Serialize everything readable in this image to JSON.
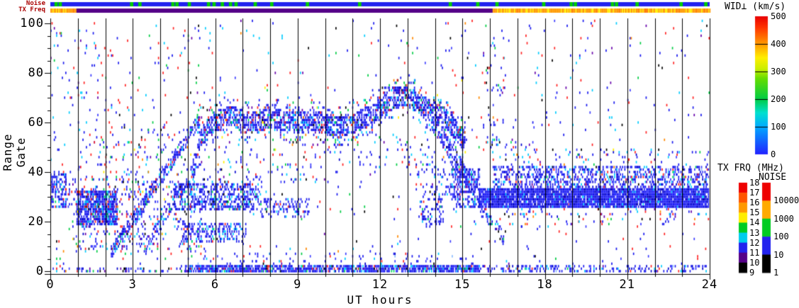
{
  "labels": {
    "noise_strip": "Noise",
    "txfreq_strip": "TX Freq"
  },
  "chart_data": {
    "type": "rti-scatter",
    "xlabel": "UT hours",
    "ylabel": "Range Gate",
    "x_range": [
      0,
      24
    ],
    "y_range": [
      0,
      100
    ],
    "x_ticks": [
      0,
      3,
      6,
      9,
      12,
      15,
      18,
      21,
      24
    ],
    "x_minor_step": 1,
    "y_ticks": [
      0,
      20,
      40,
      60,
      80,
      100
    ],
    "y_minor_step": 5,
    "vertical_scan_lines_every_hour": true,
    "palettes": {
      "low": [
        [
          "#1a1aee",
          0.58
        ],
        [
          "#3c3cff",
          0.13
        ],
        [
          "#0000cc",
          0.1
        ],
        [
          "#00ccff",
          0.09
        ],
        [
          "#00dd55",
          0.02
        ],
        [
          "#ff2222",
          0.03
        ],
        [
          "#6600aa",
          0.02
        ],
        [
          "#000000",
          0.015
        ],
        [
          "#88bbff",
          0.015
        ]
      ],
      "dense": [
        [
          "#1a1aee",
          0.55
        ],
        [
          "#2222ff",
          0.2
        ],
        [
          "#0000bb",
          0.15
        ],
        [
          "#00ccff",
          0.05
        ],
        [
          "#3c3cff",
          0.05
        ]
      ],
      "mix": [
        [
          "#1a1aee",
          0.4
        ],
        [
          "#3c3cff",
          0.08
        ],
        [
          "#00ccff",
          0.14
        ],
        [
          "#ff2222",
          0.14
        ],
        [
          "#00cc44",
          0.07
        ],
        [
          "#6600aa",
          0.06
        ],
        [
          "#000000",
          0.04
        ],
        [
          "#ffee00",
          0.02
        ],
        [
          "#ff8800",
          0.02
        ],
        [
          "#0000cc",
          0.03
        ]
      ],
      "noise": [
        [
          "#1a1aee",
          0.36
        ],
        [
          "#ff2222",
          0.21
        ],
        [
          "#00ccff",
          0.13
        ],
        [
          "#3c3cff",
          0.08
        ],
        [
          "#00cc44",
          0.09
        ],
        [
          "#6600aa",
          0.06
        ],
        [
          "#000000",
          0.04
        ],
        [
          "#ffee00",
          0.01
        ],
        [
          "#ff8800",
          0.02
        ]
      ]
    },
    "features": [
      {
        "name": "background-noise",
        "type": "rect",
        "h": [
          0,
          24
        ],
        "g": [
          0,
          102
        ],
        "d": 0.013,
        "p": "noise",
        "seed": 11
      },
      {
        "name": "left-upper-noise",
        "type": "rect",
        "h": [
          0,
          5.5
        ],
        "g": [
          40,
          100
        ],
        "d": 0.018,
        "p": "noise",
        "seed": 12
      },
      {
        "name": "blob-h0",
        "type": "rect",
        "h": [
          0,
          0.55
        ],
        "g": [
          26,
          40
        ],
        "d": 0.5,
        "p": "low",
        "seed": 13
      },
      {
        "name": "blob-h0-tail",
        "type": "rect",
        "h": [
          0.55,
          1.0
        ],
        "g": [
          26,
          38
        ],
        "d": 0.15,
        "p": "low",
        "seed": 14
      },
      {
        "name": "dense-blob-h1",
        "type": "rect",
        "h": [
          0.95,
          2.45
        ],
        "g": [
          19,
          33
        ],
        "d": 0.78,
        "p": "low",
        "seed": 15
      },
      {
        "name": "left-scatter",
        "type": "rect",
        "h": [
          0.8,
          5.5
        ],
        "g": [
          8,
          38
        ],
        "d": 0.12,
        "p": "mix",
        "seed": 16
      },
      {
        "name": "left-fan",
        "type": "rect",
        "h": [
          1.8,
          5.4
        ],
        "g": [
          36,
          60
        ],
        "d": 0.05,
        "p": "mix",
        "seed": 17
      },
      {
        "name": "diag-main",
        "type": "diag",
        "h": [
          2.2,
          5.45
        ],
        "g": [
          8,
          62
        ],
        "hw": 2.5,
        "d": 0.55,
        "p": "low",
        "seed": 18
      },
      {
        "name": "diag-2",
        "type": "diag",
        "h": [
          3.4,
          5.5
        ],
        "g": [
          10,
          45
        ],
        "hw": 2,
        "d": 0.3,
        "p": "low",
        "seed": 19
      },
      {
        "name": "cusp-entry",
        "type": "diag",
        "h": [
          5.1,
          5.5
        ],
        "g": [
          40,
          55
        ],
        "hw": 3,
        "d": 0.4,
        "p": "low",
        "seed": 42
      },
      {
        "name": "streak-g30",
        "type": "rect",
        "h": [
          4.5,
          7.6
        ],
        "g": [
          25,
          36
        ],
        "d": 0.45,
        "p": "low",
        "seed": 20
      },
      {
        "name": "streak-g26",
        "type": "rect",
        "h": [
          7.6,
          9.4
        ],
        "g": [
          22,
          30
        ],
        "d": 0.28,
        "p": "low",
        "seed": 21
      },
      {
        "name": "streak-g16",
        "type": "rect",
        "h": [
          4.8,
          7.1
        ],
        "g": [
          12,
          20
        ],
        "d": 0.38,
        "p": "low",
        "seed": 22
      },
      {
        "name": "bottom-band",
        "type": "rect",
        "h": [
          4.9,
          15.6
        ],
        "g": [
          0,
          3
        ],
        "d": 0.8,
        "p": "low",
        "seed": 23
      },
      {
        "name": "bottom-fringe",
        "type": "rect",
        "h": [
          4.9,
          15.6
        ],
        "g": [
          3,
          8
        ],
        "d": 0.05,
        "p": "low",
        "seed": 24
      },
      {
        "name": "bottom-left",
        "type": "rect",
        "h": [
          0,
          4.9
        ],
        "g": [
          0,
          2
        ],
        "d": 0.22,
        "p": "mix",
        "seed": 25
      },
      {
        "name": "cusp-band-core",
        "type": "path",
        "pts": [
          [
            5.4,
            53
          ],
          [
            5.9,
            60
          ],
          [
            6.5,
            63
          ],
          [
            7.2,
            60
          ],
          [
            8.0,
            62
          ],
          [
            8.8,
            60
          ],
          [
            9.6,
            61
          ],
          [
            10.4,
            58
          ],
          [
            11.0,
            60
          ],
          [
            11.8,
            64
          ],
          [
            12.4,
            70
          ],
          [
            12.9,
            71
          ],
          [
            13.4,
            68
          ],
          [
            14.0,
            64
          ],
          [
            14.6,
            59
          ],
          [
            15.1,
            52
          ]
        ],
        "hw": 4,
        "d": 0.55,
        "p": "low",
        "seed": 26
      },
      {
        "name": "cusp-band-outer",
        "type": "path",
        "pts": [
          [
            5.4,
            53
          ],
          [
            5.9,
            60
          ],
          [
            6.5,
            63
          ],
          [
            7.2,
            60
          ],
          [
            8.0,
            62
          ],
          [
            8.8,
            60
          ],
          [
            9.6,
            61
          ],
          [
            10.4,
            58
          ],
          [
            11.0,
            60
          ],
          [
            11.8,
            64
          ],
          [
            12.4,
            70
          ],
          [
            12.9,
            71
          ],
          [
            13.4,
            68
          ],
          [
            14.0,
            64
          ],
          [
            14.6,
            59
          ],
          [
            15.1,
            52
          ]
        ],
        "hw": 8,
        "d": 0.13,
        "p": "mix",
        "seed": 27
      },
      {
        "name": "below-band-scatter-1",
        "type": "rect",
        "h": [
          5.5,
          10.5
        ],
        "g": [
          36,
          52
        ],
        "d": 0.06,
        "p": "mix",
        "seed": 28
      },
      {
        "name": "below-band-scatter-2",
        "type": "rect",
        "h": [
          10.5,
          14.5
        ],
        "g": [
          42,
          56
        ],
        "d": 0.05,
        "p": "mix",
        "seed": 29
      },
      {
        "name": "blob-h13-low",
        "type": "rect",
        "h": [
          13.4,
          14.3
        ],
        "g": [
          19,
          30
        ],
        "d": 0.3,
        "p": "low",
        "seed": 30
      },
      {
        "name": "blob-h13-mid",
        "type": "rect",
        "h": [
          13.3,
          14.9
        ],
        "g": [
          30,
          45
        ],
        "d": 0.13,
        "p": "low",
        "seed": 31
      },
      {
        "name": "descend",
        "type": "diag",
        "h": [
          13.9,
          15.45
        ],
        "g": [
          60,
          33
        ],
        "hw": 3.5,
        "d": 0.5,
        "p": "low",
        "seed": 32
      },
      {
        "name": "pre-descend-blob",
        "type": "rect",
        "h": [
          14.6,
          15.6
        ],
        "g": [
          26,
          42
        ],
        "d": 0.5,
        "p": "low",
        "seed": 33
      },
      {
        "name": "tail-down",
        "type": "diag",
        "h": [
          15.6,
          16.5
        ],
        "g": [
          26,
          14
        ],
        "hw": 2.5,
        "d": 0.28,
        "p": "low",
        "seed": 34
      },
      {
        "name": "right-band-core",
        "type": "rect",
        "h": [
          15.6,
          24
        ],
        "g": [
          26,
          34
        ],
        "d": 0.92,
        "p": "dense",
        "seed": 35
      },
      {
        "name": "right-band-upper",
        "type": "rect",
        "h": [
          16.1,
          24
        ],
        "g": [
          34,
          43
        ],
        "d": 0.38,
        "p": "low",
        "seed": 36
      },
      {
        "name": "right-band-upper-fringe",
        "type": "rect",
        "h": [
          16.1,
          24
        ],
        "g": [
          43,
          50
        ],
        "d": 0.05,
        "p": "mix",
        "seed": 37
      },
      {
        "name": "right-band-lower-fringe",
        "type": "rect",
        "h": [
          15.6,
          24
        ],
        "g": [
          18,
          26
        ],
        "d": 0.05,
        "p": "mix",
        "seed": 38
      },
      {
        "name": "right-bottom",
        "type": "rect",
        "h": [
          15.6,
          24
        ],
        "g": [
          0,
          2.5
        ],
        "d": 0.3,
        "p": "low",
        "seed": 39
      },
      {
        "name": "h16-vertical",
        "type": "rect",
        "h": [
          15.85,
          16.55
        ],
        "g": [
          50,
          95
        ],
        "d": 0.05,
        "p": "mix",
        "seed": 40
      },
      {
        "name": "h16-17-mid",
        "type": "rect",
        "h": [
          16.0,
          17.6
        ],
        "g": [
          50,
          62
        ],
        "d": 0.05,
        "p": "low",
        "seed": 41
      }
    ],
    "strips": {
      "noise_base_color": "#2222ee",
      "noise_mark_color": "#00cc00",
      "noise_marks_h": [
        0.15,
        0.3,
        2.9,
        3.2,
        4.4,
        4.55,
        5.0,
        5.7,
        5.9,
        6.2,
        6.5,
        6.7,
        7.4,
        8.0,
        9.3,
        11.2,
        14.5,
        15.5,
        16.2,
        17.9,
        18.9,
        19.05,
        20.4,
        20.55,
        21.3,
        22.9,
        23.8
      ],
      "noise_mark_width_h": 0.12,
      "tx_solid_color": "#550088",
      "tx_segments": [
        {
          "h": [
            0,
            0.95
          ],
          "style": "mix"
        },
        {
          "h": [
            0.95,
            16.1
          ],
          "style": "solid"
        },
        {
          "h": [
            16.1,
            24
          ],
          "style": "mix"
        }
      ],
      "tx_mix_colors": [
        [
          "#ff9900",
          0.55
        ],
        [
          "#ffee00",
          0.3
        ],
        [
          "#ff7700",
          0.15
        ]
      ],
      "tx_mix_seed": 77
    },
    "colorbars": {
      "wid": {
        "title": "WID⊥ (km/s)",
        "min": 0,
        "max": 500,
        "ticks": [
          0,
          100,
          200,
          300,
          400,
          500
        ],
        "gradient_bottom_to_top": [
          [
            0.0,
            "#2222ff"
          ],
          [
            0.2,
            "#00aaff"
          ],
          [
            0.3,
            "#00e0d0"
          ],
          [
            0.4,
            "#00cc44"
          ],
          [
            0.55,
            "#66dd00"
          ],
          [
            0.62,
            "#ccee00"
          ],
          [
            0.7,
            "#ffee00"
          ],
          [
            0.8,
            "#ff9900"
          ],
          [
            0.92,
            "#ff3300"
          ],
          [
            1.0,
            "#e80000"
          ]
        ]
      },
      "txfrq": {
        "title": "TX FRQ (MHz)",
        "ticks_top_to_bottom": [
          18,
          17,
          16,
          15,
          14,
          13,
          12,
          11,
          10,
          9
        ],
        "segments_top_to_bottom": [
          "#ee0000",
          "#ff5500",
          "#ff9900",
          "#ffee00",
          "#00cc22",
          "#00ccee",
          "#2222ee",
          "#550088",
          "#000000"
        ]
      },
      "noise": {
        "title": "NOISE",
        "ticks_top_to_bottom": [
          "10000",
          "1000",
          "100",
          "10",
          "1"
        ],
        "segments_top_to_bottom": [
          "#ee0000",
          "#ffaa00",
          "#00cc22",
          "#2222ee",
          "#000000"
        ]
      }
    }
  }
}
